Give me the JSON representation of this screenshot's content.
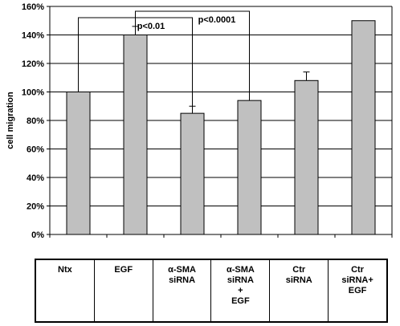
{
  "chart_data": {
    "type": "bar",
    "categories": [
      "Ntx",
      "EGF",
      "α-SMA siRNA",
      "α-SMA siRNA + EGF",
      "Ctr siRNA",
      "Ctr siRNA+ EGF"
    ],
    "values": [
      100,
      140,
      85,
      94,
      108,
      150
    ],
    "errors": [
      0,
      6,
      5,
      6,
      6,
      0
    ],
    "ylabel": "cell migration",
    "ylim": [
      0,
      160
    ],
    "yticks": [
      0,
      20,
      40,
      60,
      80,
      100,
      120,
      140,
      160
    ],
    "ytick_labels": [
      "0%",
      "20%",
      "40%",
      "60%",
      "80%",
      "100%",
      "120%",
      "140%",
      "160%"
    ],
    "grid": true,
    "bar_color": "#c0c0c0",
    "significance": [
      {
        "from": 0,
        "to": 2,
        "label": "p<0.01"
      },
      {
        "from": 1,
        "to": 3,
        "label": "p<0.0001"
      }
    ]
  },
  "table": {
    "cells": [
      "Ntx",
      "EGF",
      "α-SMA\nsiRNA",
      "α-SMA\nsiRNA\n+\nEGF",
      "Ctr\nsiRNA",
      "Ctr\nsiRNA+\nEGF"
    ]
  }
}
